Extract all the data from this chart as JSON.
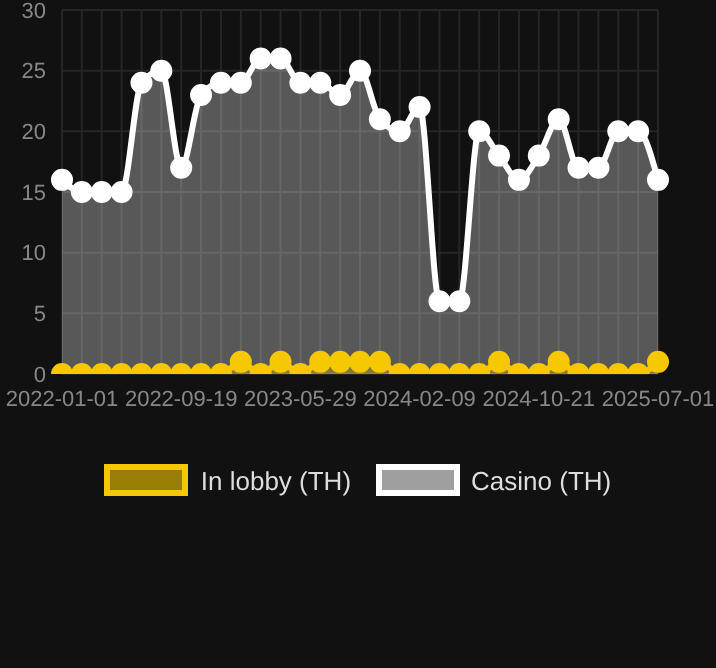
{
  "chart_data": {
    "type": "area",
    "categories": [
      "2022-01-01",
      null,
      null,
      null,
      null,
      null,
      "2022-09-19",
      null,
      null,
      null,
      null,
      null,
      "2023-05-29",
      null,
      null,
      null,
      null,
      null,
      "2024-02-09",
      null,
      null,
      null,
      null,
      null,
      "2024-10-21",
      null,
      null,
      null,
      null,
      null,
      "2025-07-01"
    ],
    "series": [
      {
        "name": "In lobby (TH)",
        "color": "#f5c800",
        "values": [
          0,
          0,
          0,
          0,
          0,
          0,
          0,
          0,
          0,
          1,
          0,
          1,
          0,
          1,
          1,
          1,
          1,
          0,
          0,
          0,
          0,
          0,
          1,
          0,
          0,
          1,
          0,
          0,
          0,
          0,
          1
        ]
      },
      {
        "name": "Casino (TH)",
        "color": "#ffffff",
        "values": [
          16,
          15,
          15,
          15,
          24,
          25,
          17,
          23,
          24,
          24,
          26,
          26,
          24,
          24,
          23,
          25,
          21,
          20,
          22,
          6,
          6,
          20,
          18,
          16,
          18,
          21,
          17,
          17,
          20,
          20,
          16
        ]
      }
    ],
    "ylim": [
      0,
      30
    ],
    "yticks": [
      0,
      5,
      10,
      15,
      20,
      25,
      30
    ],
    "grid": true,
    "legend": "bottom",
    "marker": "circle"
  }
}
